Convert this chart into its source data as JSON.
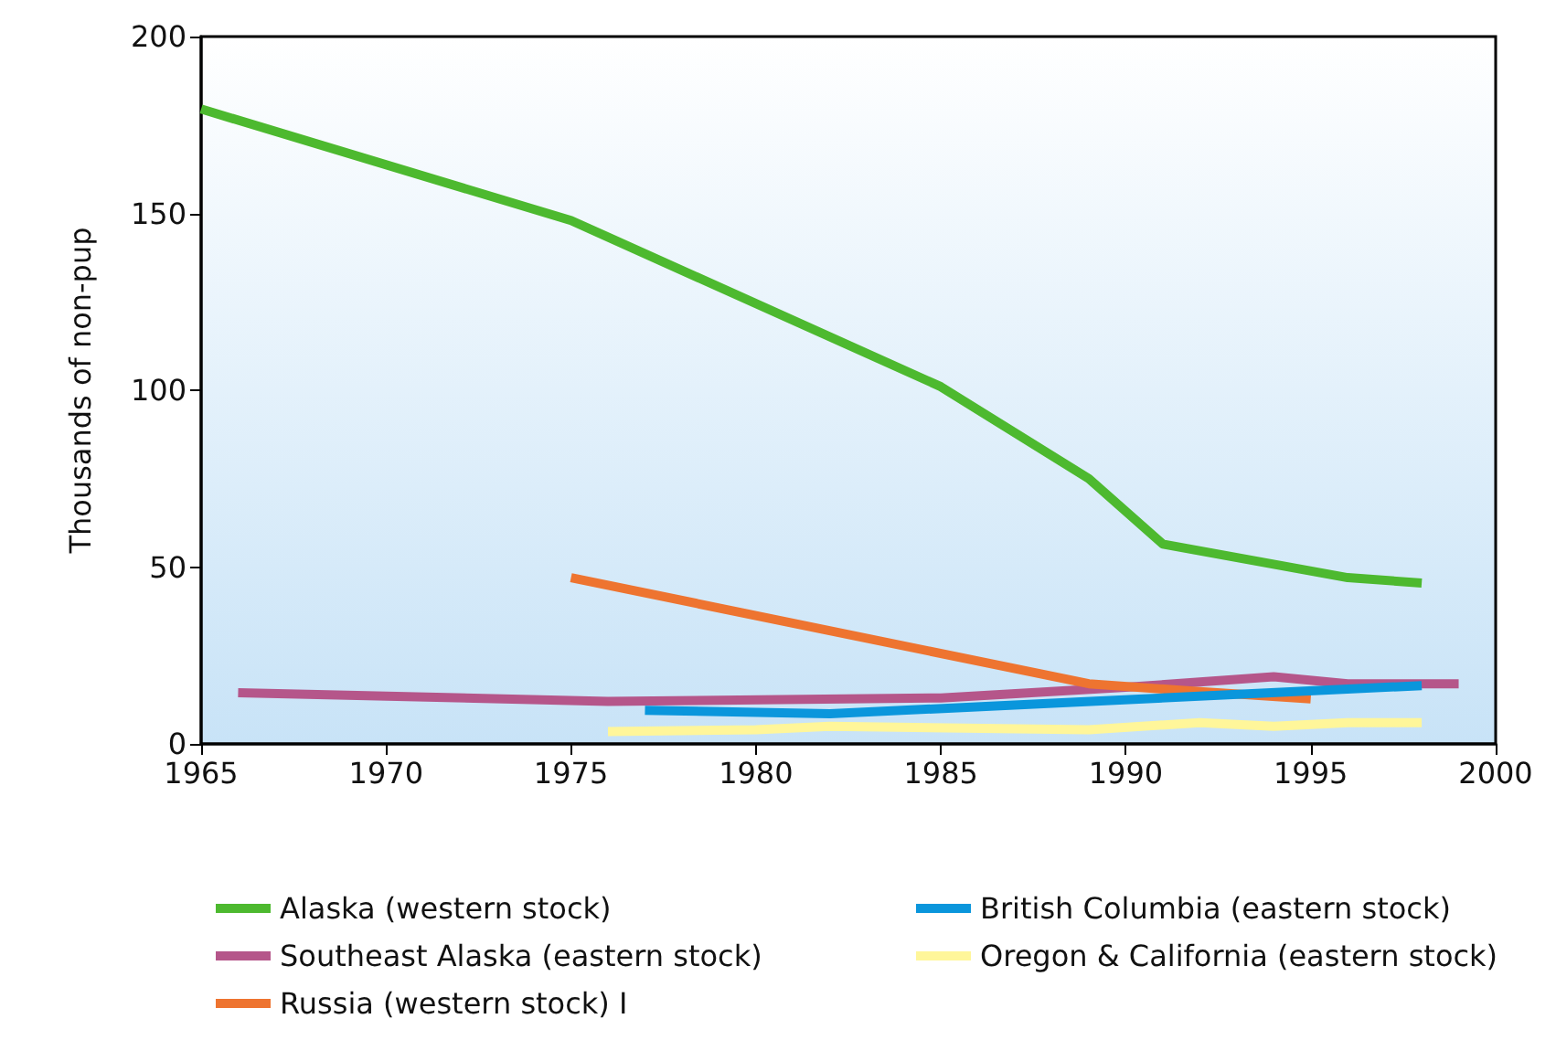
{
  "chart_data": {
    "type": "line",
    "ylabel": "Thousands of non-pup",
    "xlim": [
      1965,
      2000
    ],
    "xticks": [
      1965,
      1970,
      1975,
      1980,
      1985,
      1990,
      1995,
      2000
    ],
    "ylim": [
      0,
      200
    ],
    "yticks": [
      0,
      50,
      100,
      150,
      200
    ],
    "grid": false,
    "legend": "bottom",
    "marker": "none",
    "line_style": "solid",
    "series": [
      {
        "name": "Alaska (western stock)",
        "color": "#4db92f",
        "x": [
          1965,
          1975,
          1985,
          1989,
          1991,
          1996,
          1998
        ],
        "values": [
          179.5,
          148,
          101,
          75,
          56.5,
          47,
          45.5
        ]
      },
      {
        "name": "Southeast Alaska (eastern stock)",
        "color": "#b5568a",
        "x": [
          1966,
          1976,
          1985,
          1990,
          1994,
          1996,
          1999
        ],
        "values": [
          14.5,
          12,
          13,
          16,
          19,
          17,
          17
        ]
      },
      {
        "name": "Russia (western stock) I",
        "color": "#ee7430",
        "x": [
          1975,
          1989,
          1992,
          1995
        ],
        "values": [
          47,
          17,
          14.8,
          12.7
        ]
      },
      {
        "name": "British Columbia (eastern stock)",
        "color": "#0a96dc",
        "x": [
          1977,
          1982,
          1998
        ],
        "values": [
          9.5,
          8.5,
          16.5
        ]
      },
      {
        "name": "Oregon & California (eastern stock)",
        "color": "#fff69a",
        "x": [
          1976,
          1980,
          1982,
          1989,
          1992,
          1994,
          1996,
          1998
        ],
        "values": [
          3.5,
          4,
          5,
          4,
          6,
          5,
          6,
          6
        ]
      }
    ]
  }
}
